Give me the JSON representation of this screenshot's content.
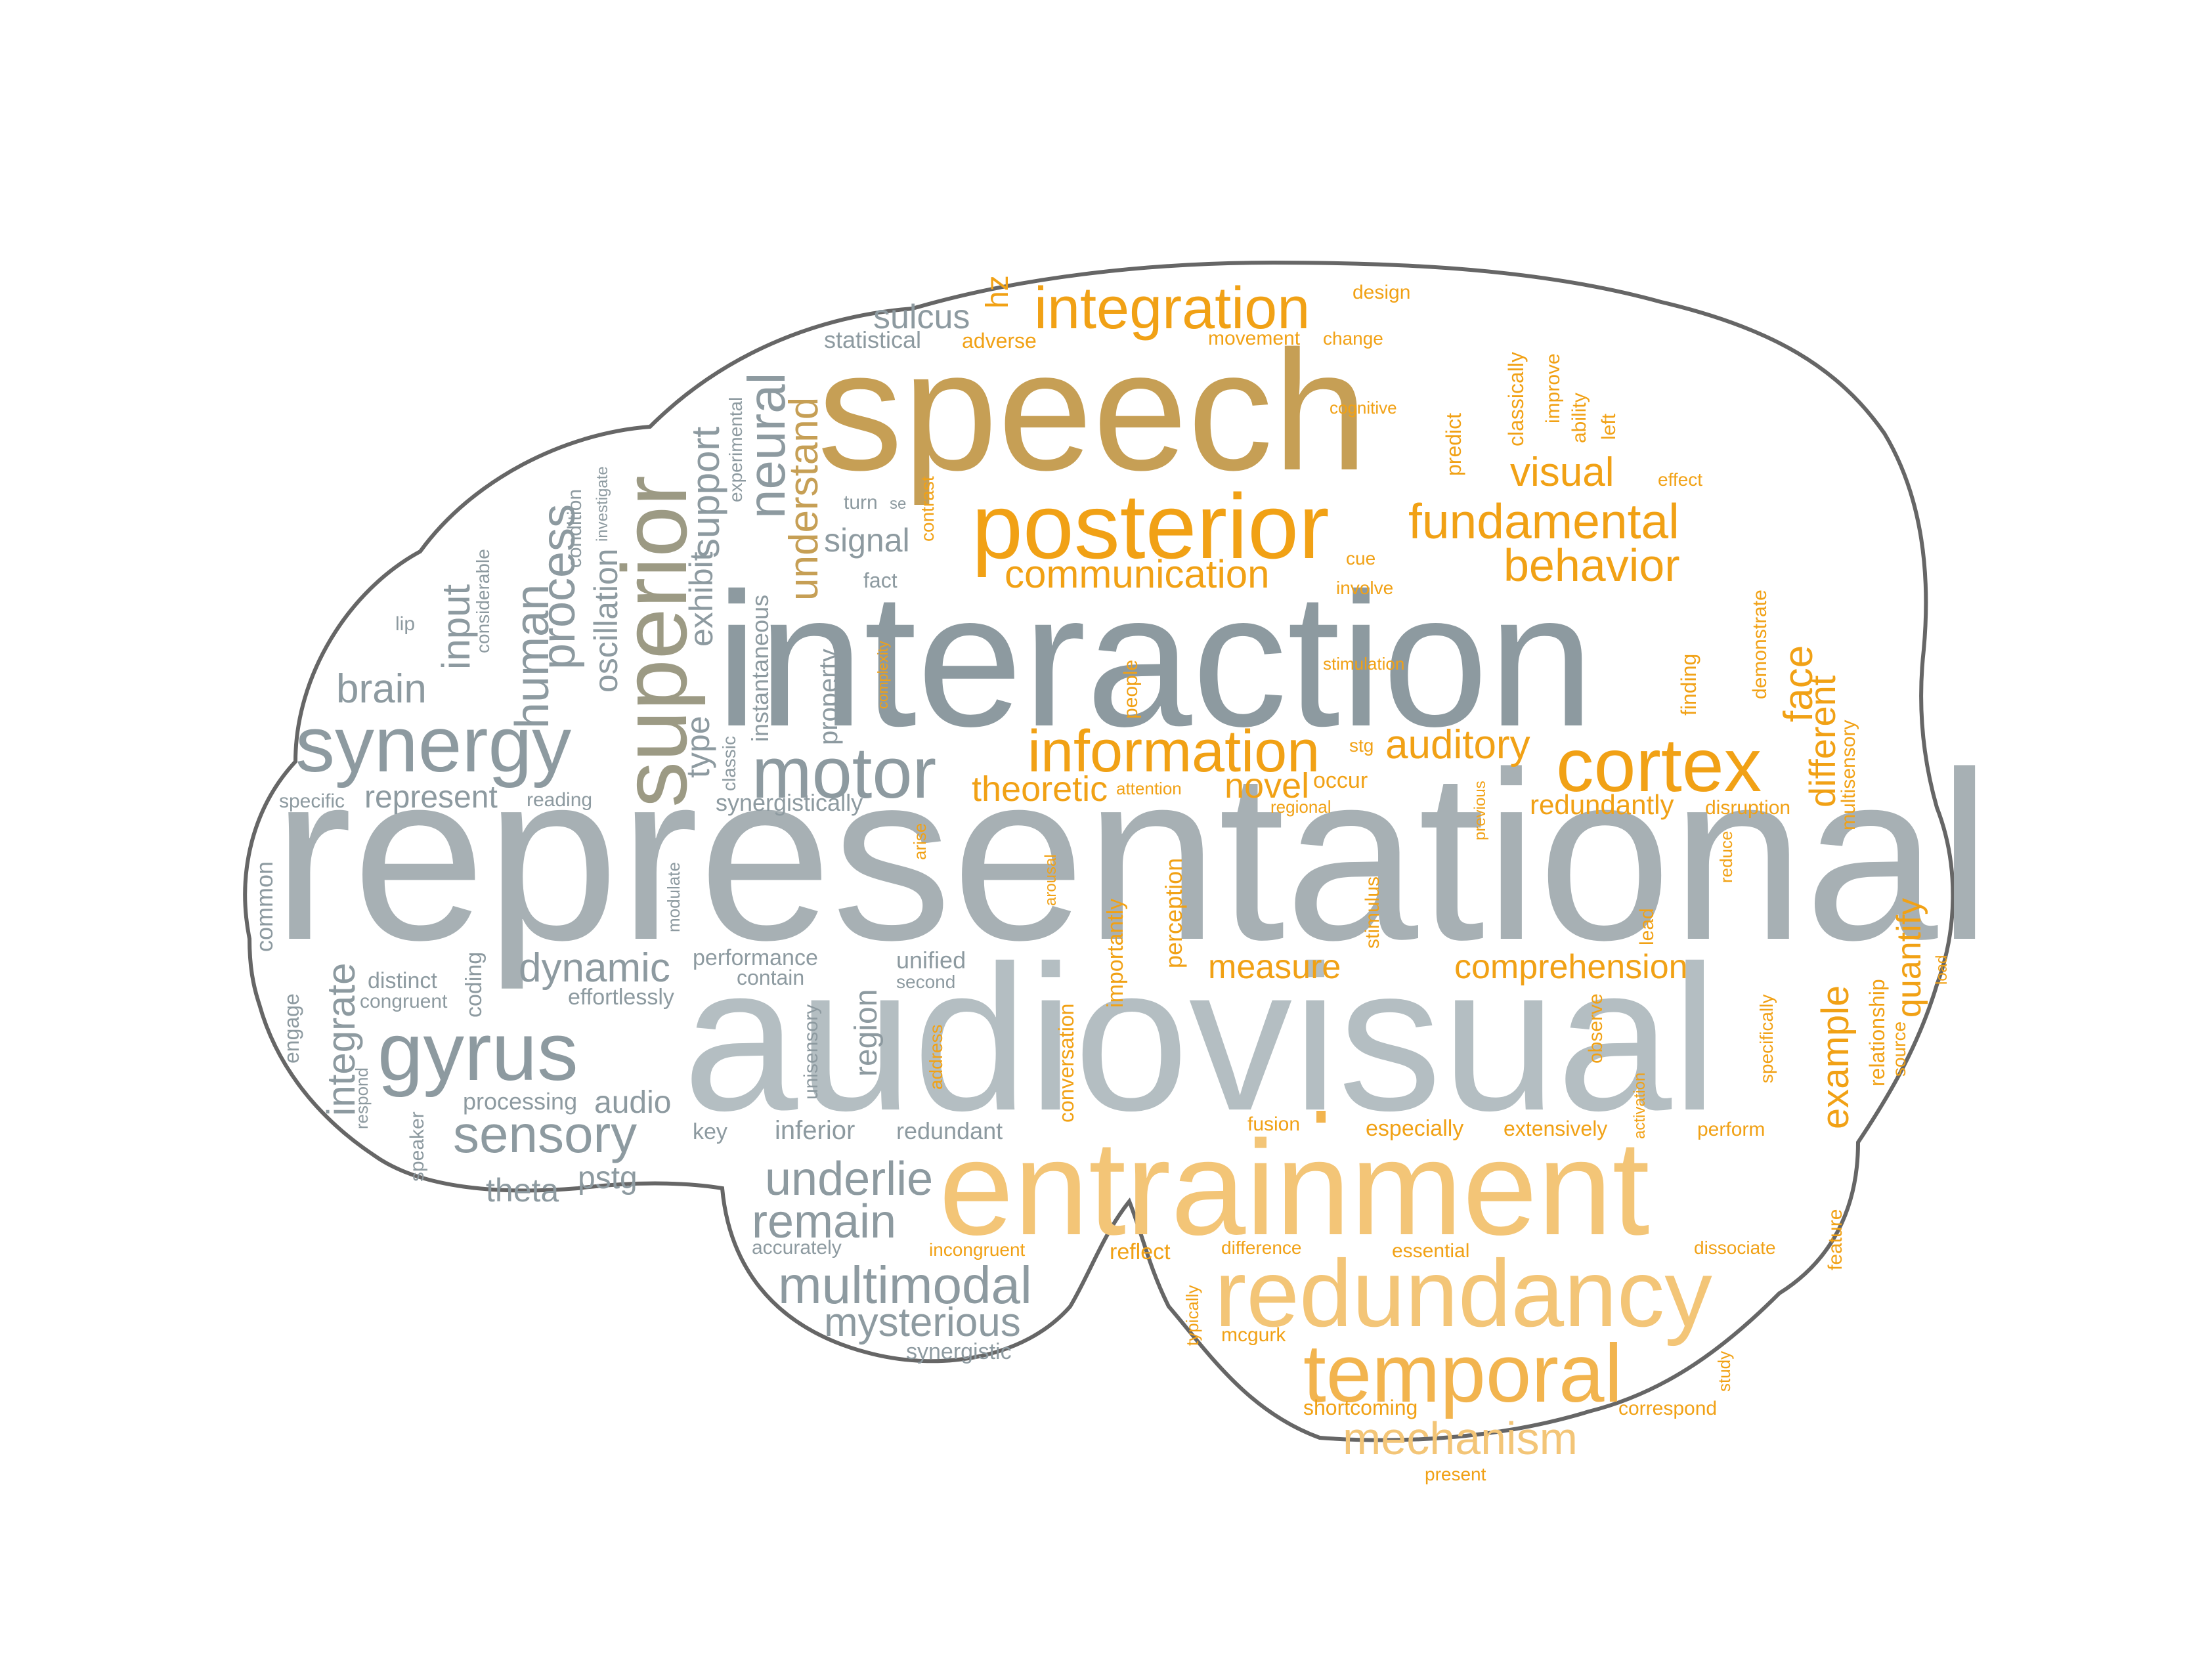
{
  "colors": {
    "slate": "#8d9aa0",
    "gray": "#a7b0b4",
    "lightgray": "#b4bec2",
    "olive": "#9c9a84",
    "gold": "#c69f55",
    "orange": "#f1a115",
    "amber": "#f2b44e",
    "peach": "#f3c577",
    "outline": "#666666"
  },
  "words": [
    {
      "text": "representational",
      "color": "gray"
    },
    {
      "text": "audiovisual",
      "color": "lightgray"
    },
    {
      "text": "interaction",
      "color": "slate"
    },
    {
      "text": "speech",
      "color": "gold"
    },
    {
      "text": "entrainment",
      "color": "peach"
    },
    {
      "text": "posterior",
      "color": "orange"
    },
    {
      "text": "superior",
      "color": "olive"
    },
    {
      "text": "redundancy",
      "color": "peach"
    },
    {
      "text": "temporal",
      "color": "amber"
    },
    {
      "text": "cortex",
      "color": "orange"
    },
    {
      "text": "integration",
      "color": "orange"
    },
    {
      "text": "synergy",
      "color": "slate"
    },
    {
      "text": "gyrus",
      "color": "slate"
    },
    {
      "text": "motor",
      "color": "slate"
    },
    {
      "text": "information",
      "color": "orange"
    },
    {
      "text": "fundamental",
      "color": "orange"
    },
    {
      "text": "multimodal",
      "color": "slate"
    },
    {
      "text": "sensory",
      "color": "slate"
    },
    {
      "text": "mechanism",
      "color": "peach"
    },
    {
      "text": "behavior",
      "color": "orange"
    },
    {
      "text": "communication",
      "color": "orange"
    },
    {
      "text": "underlie",
      "color": "slate"
    },
    {
      "text": "remain",
      "color": "slate"
    },
    {
      "text": "mysterious",
      "color": "slate"
    },
    {
      "text": "visual",
      "color": "orange"
    },
    {
      "text": "auditory",
      "color": "orange"
    },
    {
      "text": "neural",
      "color": "slate"
    },
    {
      "text": "process",
      "color": "slate"
    },
    {
      "text": "human",
      "color": "slate"
    },
    {
      "text": "support",
      "color": "slate"
    },
    {
      "text": "understand",
      "color": "gold"
    },
    {
      "text": "brain",
      "color": "slate"
    },
    {
      "text": "input",
      "color": "slate"
    },
    {
      "text": "dynamic",
      "color": "slate"
    },
    {
      "text": "integrate",
      "color": "slate"
    },
    {
      "text": "example",
      "color": "orange"
    },
    {
      "text": "comprehension",
      "color": "orange"
    },
    {
      "text": "theoretic",
      "color": "orange"
    },
    {
      "text": "novel",
      "color": "orange"
    },
    {
      "text": "measure",
      "color": "orange"
    },
    {
      "text": "face",
      "color": "orange"
    },
    {
      "text": "different",
      "color": "orange"
    },
    {
      "text": "quantify",
      "color": "orange"
    },
    {
      "text": "sulcus",
      "color": "slate"
    },
    {
      "text": "signal",
      "color": "slate"
    },
    {
      "text": "oscillation",
      "color": "slate"
    },
    {
      "text": "exhibit",
      "color": "slate"
    },
    {
      "text": "type",
      "color": "slate"
    },
    {
      "text": "represent",
      "color": "slate"
    },
    {
      "text": "theta",
      "color": "slate"
    },
    {
      "text": "pstg",
      "color": "slate"
    },
    {
      "text": "audio",
      "color": "slate"
    },
    {
      "text": "region",
      "color": "slate"
    },
    {
      "text": "redundantly",
      "color": "orange"
    },
    {
      "text": "hz",
      "color": "orange"
    },
    {
      "text": "property",
      "color": "slate"
    },
    {
      "text": "instantaneous",
      "color": "slate"
    },
    {
      "text": "statistical",
      "color": "slate"
    },
    {
      "text": "synergistically",
      "color": "slate"
    },
    {
      "text": "processing",
      "color": "slate"
    },
    {
      "text": "inferior",
      "color": "slate"
    },
    {
      "text": "redundant",
      "color": "slate"
    },
    {
      "text": "unified",
      "color": "slate"
    },
    {
      "text": "performance",
      "color": "slate"
    },
    {
      "text": "effortlessly",
      "color": "slate"
    },
    {
      "text": "common",
      "color": "slate"
    },
    {
      "text": "distinct",
      "color": "slate"
    },
    {
      "text": "congruent",
      "color": "slate"
    },
    {
      "text": "engage",
      "color": "slate"
    },
    {
      "text": "coding",
      "color": "slate"
    },
    {
      "text": "key",
      "color": "slate"
    },
    {
      "text": "condition",
      "color": "slate"
    },
    {
      "text": "investigate",
      "color": "slate"
    },
    {
      "text": "considerable",
      "color": "slate"
    },
    {
      "text": "lip",
      "color": "slate"
    },
    {
      "text": "specific",
      "color": "slate"
    },
    {
      "text": "reading",
      "color": "slate"
    },
    {
      "text": "respond",
      "color": "slate"
    },
    {
      "text": "speaker",
      "color": "slate"
    },
    {
      "text": "classic",
      "color": "slate"
    },
    {
      "text": "experimental",
      "color": "slate"
    },
    {
      "text": "turn",
      "color": "slate"
    },
    {
      "text": "se",
      "color": "slate"
    },
    {
      "text": "fact",
      "color": "slate"
    },
    {
      "text": "modulate",
      "color": "slate"
    },
    {
      "text": "contain",
      "color": "slate"
    },
    {
      "text": "second",
      "color": "slate"
    },
    {
      "text": "unisensory",
      "color": "slate"
    },
    {
      "text": "accurately",
      "color": "slate"
    },
    {
      "text": "synergistic",
      "color": "slate"
    },
    {
      "text": "design",
      "color": "orange"
    },
    {
      "text": "adverse",
      "color": "orange"
    },
    {
      "text": "movement",
      "color": "orange"
    },
    {
      "text": "change",
      "color": "orange"
    },
    {
      "text": "cognitive",
      "color": "orange"
    },
    {
      "text": "predict",
      "color": "orange"
    },
    {
      "text": "classically",
      "color": "orange"
    },
    {
      "text": "improve",
      "color": "orange"
    },
    {
      "text": "ability",
      "color": "orange"
    },
    {
      "text": "left",
      "color": "orange"
    },
    {
      "text": "effect",
      "color": "orange"
    },
    {
      "text": "contrast",
      "color": "orange"
    },
    {
      "text": "cue",
      "color": "orange"
    },
    {
      "text": "involve",
      "color": "orange"
    },
    {
      "text": "stimulation",
      "color": "orange"
    },
    {
      "text": "complexity",
      "color": "orange"
    },
    {
      "text": "people",
      "color": "orange"
    },
    {
      "text": "stg",
      "color": "orange"
    },
    {
      "text": "occur",
      "color": "orange"
    },
    {
      "text": "attention",
      "color": "orange"
    },
    {
      "text": "regional",
      "color": "orange"
    },
    {
      "text": "finding",
      "color": "orange"
    },
    {
      "text": "demonstrate",
      "color": "orange"
    },
    {
      "text": "disruption",
      "color": "orange"
    },
    {
      "text": "multisensory",
      "color": "orange"
    },
    {
      "text": "previous",
      "color": "orange"
    },
    {
      "text": "arise",
      "color": "orange"
    },
    {
      "text": "arousal",
      "color": "orange"
    },
    {
      "text": "importantly",
      "color": "orange"
    },
    {
      "text": "perception",
      "color": "orange"
    },
    {
      "text": "stimulus",
      "color": "orange"
    },
    {
      "text": "reduce",
      "color": "orange"
    },
    {
      "text": "lead",
      "color": "orange"
    },
    {
      "text": "load",
      "color": "orange"
    },
    {
      "text": "relationship",
      "color": "orange"
    },
    {
      "text": "source",
      "color": "orange"
    },
    {
      "text": "specifically",
      "color": "orange"
    },
    {
      "text": "observe",
      "color": "orange"
    },
    {
      "text": "address",
      "color": "orange"
    },
    {
      "text": "conversation",
      "color": "orange"
    },
    {
      "text": "fusion",
      "color": "orange"
    },
    {
      "text": "especially",
      "color": "orange"
    },
    {
      "text": "extensively",
      "color": "orange"
    },
    {
      "text": "activation",
      "color": "orange"
    },
    {
      "text": "perform",
      "color": "orange"
    },
    {
      "text": "feature",
      "color": "orange"
    },
    {
      "text": "incongruent",
      "color": "orange"
    },
    {
      "text": "reflect",
      "color": "orange"
    },
    {
      "text": "difference",
      "color": "orange"
    },
    {
      "text": "essential",
      "color": "orange"
    },
    {
      "text": "dissociate",
      "color": "orange"
    },
    {
      "text": "typically",
      "color": "orange"
    },
    {
      "text": "mcgurk",
      "color": "orange"
    },
    {
      "text": "study",
      "color": "orange"
    },
    {
      "text": "shortcoming",
      "color": "orange"
    },
    {
      "text": "correspond",
      "color": "orange"
    },
    {
      "text": "present",
      "color": "orange"
    }
  ]
}
